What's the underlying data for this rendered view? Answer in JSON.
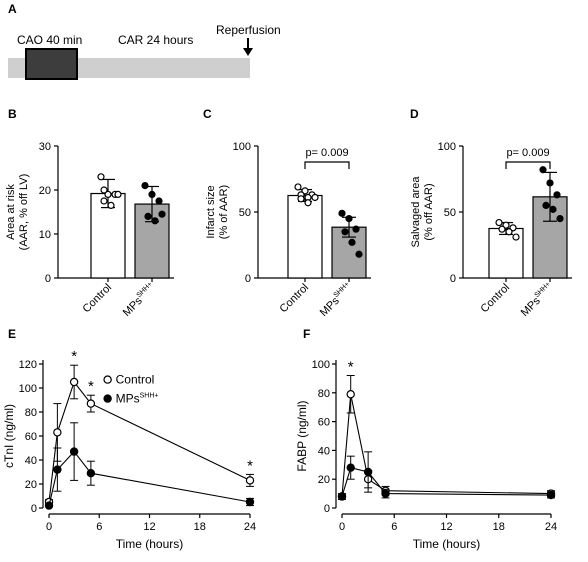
{
  "timeline": {
    "panel_label": "A",
    "cao_label": "CAO 40 min",
    "car_label": "CAR 24 hours",
    "reperfusion_label": "Reperfusion"
  },
  "chart_data": [
    {
      "panel": "B",
      "type": "bar",
      "categories": [
        "Control",
        "MPs"
      ],
      "category_superscripts": [
        "",
        "SHH+"
      ],
      "values": [
        19.2,
        16.8
      ],
      "errors": [
        3.2,
        4.0
      ],
      "points": [
        [
          23,
          19,
          19,
          17.5,
          16.5,
          19,
          20
        ],
        [
          21,
          19,
          17.5,
          14,
          13,
          14.5
        ]
      ],
      "ylabel": "Area at risk",
      "ylabel2": "(AAR, % off LV)",
      "ylim": [
        0,
        30
      ],
      "yticks": [
        0,
        10,
        20,
        30
      ],
      "colors": [
        "#ffffff",
        "#a6a6a6"
      ]
    },
    {
      "panel": "C",
      "type": "bar",
      "categories": [
        "Control",
        "MPs"
      ],
      "category_superscripts": [
        "",
        "SHH+"
      ],
      "values": [
        62.5,
        38.5
      ],
      "errors": [
        4.5,
        7.5
      ],
      "points": [
        [
          69,
          66,
          63,
          63,
          61,
          61,
          60,
          57
        ],
        [
          49,
          45,
          37,
          35,
          27,
          18
        ]
      ],
      "ylabel": "Infarct size",
      "ylabel2": "(% of AAR)",
      "ylim": [
        0,
        100
      ],
      "yticks": [
        0,
        50,
        100
      ],
      "annotation": "p= 0.009",
      "colors": [
        "#ffffff",
        "#a6a6a6"
      ]
    },
    {
      "panel": "D",
      "type": "bar",
      "categories": [
        "Control",
        "MPs"
      ],
      "category_superscripts": [
        "",
        "SHH+"
      ],
      "values": [
        37.5,
        61.5
      ],
      "errors": [
        4.5,
        18.5
      ],
      "points": [
        [
          42,
          40,
          38,
          37,
          35,
          31
        ],
        [
          82,
          72,
          63,
          55,
          52,
          45
        ]
      ],
      "ylabel": "Salvaged area",
      "ylabel2": "(% off AAR)",
      "ylim": [
        0,
        100
      ],
      "yticks": [
        0,
        50,
        100
      ],
      "annotation": "p= 0.009",
      "colors": [
        "#ffffff",
        "#a6a6a6"
      ]
    },
    {
      "panel": "E",
      "type": "line",
      "xlabel": "Time (hours)",
      "ylabel": "cTnI (ng/ml)",
      "xlim": [
        0,
        24
      ],
      "xticks": [
        0,
        6,
        12,
        18,
        24
      ],
      "ylim": [
        0,
        120
      ],
      "yticks": [
        0,
        20,
        40,
        60,
        80,
        100,
        120
      ],
      "series": [
        {
          "name": "Control",
          "marker": "open",
          "x": [
            0,
            1,
            3,
            5,
            24
          ],
          "y": [
            5,
            63,
            105,
            87,
            23
          ],
          "err": [
            2,
            24,
            14,
            7,
            5
          ]
        },
        {
          "name": "MPs",
          "name_sup": "SHH+",
          "marker": "filled",
          "x": [
            0,
            1,
            3,
            5,
            24
          ],
          "y": [
            2,
            32,
            47,
            29,
            5
          ],
          "err": [
            1,
            18,
            24,
            10,
            3
          ]
        }
      ],
      "stars_at": [
        3,
        5,
        24
      ],
      "star_label": "*"
    },
    {
      "panel": "F",
      "type": "line",
      "xlabel": "Time (hours)",
      "ylabel": "FABP (ng/ml)",
      "xlim": [
        0,
        24
      ],
      "xticks": [
        0,
        6,
        12,
        18,
        24
      ],
      "ylim": [
        0,
        100
      ],
      "yticks": [
        0,
        20,
        40,
        60,
        80,
        100
      ],
      "series": [
        {
          "name": "Control",
          "marker": "open",
          "x": [
            0,
            1,
            3,
            5,
            24
          ],
          "y": [
            8,
            79,
            20,
            12,
            10
          ],
          "err": [
            2,
            13,
            6,
            3,
            2
          ]
        },
        {
          "name": "MPs",
          "marker": "filled",
          "x": [
            0,
            1,
            3,
            5,
            24
          ],
          "y": [
            8,
            28,
            25,
            10,
            9
          ],
          "err": [
            2,
            8,
            14,
            3,
            2
          ]
        }
      ],
      "stars_at": [
        1
      ],
      "star_label": "*"
    }
  ]
}
